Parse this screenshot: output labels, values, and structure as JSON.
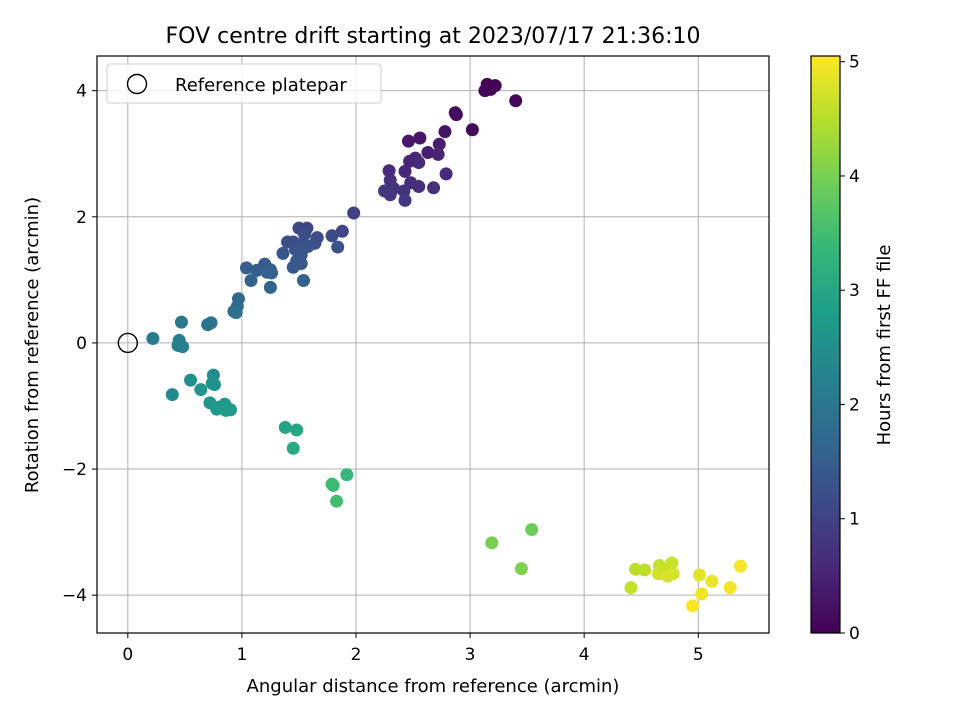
{
  "chart_data": {
    "type": "scatter",
    "title": "FOV centre drift starting at 2023/07/17 21:36:10",
    "xlabel": "Angular distance from reference (arcmin)",
    "ylabel": "Rotation from reference (arcmin)",
    "xlim": [
      -0.27,
      5.62
    ],
    "ylim": [
      -4.6,
      4.55
    ],
    "xticks": [
      0,
      1,
      2,
      3,
      4,
      5
    ],
    "yticks": [
      -4,
      -2,
      0,
      2,
      4
    ],
    "grid": true,
    "legend": {
      "placement": "top-left",
      "entries": [
        "Reference platepar"
      ]
    },
    "reference_point": {
      "x": 0,
      "y": 0
    },
    "colorbar": {
      "label": "Hours from first FF file",
      "range": [
        0,
        5.05
      ],
      "ticks": [
        0,
        1,
        2,
        3,
        4,
        5
      ],
      "colormap": [
        "#440154",
        "#482878",
        "#3e4989",
        "#31688e",
        "#26828e",
        "#1f9e89",
        "#35b779",
        "#6ece58",
        "#b5de2b",
        "#fde725"
      ]
    },
    "points": [
      {
        "x": 3.15,
        "y": 4.1,
        "c": 0.02
      },
      {
        "x": 3.22,
        "y": 4.08,
        "c": 0.03
      },
      {
        "x": 3.18,
        "y": 4.02,
        "c": 0.05
      },
      {
        "x": 3.13,
        "y": 4.0,
        "c": 0.06
      },
      {
        "x": 3.4,
        "y": 3.84,
        "c": 0.08
      },
      {
        "x": 2.87,
        "y": 3.65,
        "c": 0.15
      },
      {
        "x": 2.88,
        "y": 3.62,
        "c": 0.17
      },
      {
        "x": 3.02,
        "y": 3.38,
        "c": 0.12
      },
      {
        "x": 2.78,
        "y": 3.35,
        "c": 0.25
      },
      {
        "x": 2.56,
        "y": 3.25,
        "c": 0.3
      },
      {
        "x": 2.46,
        "y": 3.2,
        "c": 0.35
      },
      {
        "x": 2.73,
        "y": 3.15,
        "c": 0.4
      },
      {
        "x": 2.63,
        "y": 3.02,
        "c": 0.45
      },
      {
        "x": 2.72,
        "y": 2.99,
        "c": 0.5
      },
      {
        "x": 2.52,
        "y": 2.93,
        "c": 0.5
      },
      {
        "x": 2.47,
        "y": 2.88,
        "c": 0.55
      },
      {
        "x": 2.55,
        "y": 2.86,
        "c": 0.6
      },
      {
        "x": 2.29,
        "y": 2.73,
        "c": 0.65
      },
      {
        "x": 2.43,
        "y": 2.72,
        "c": 0.55
      },
      {
        "x": 2.79,
        "y": 2.68,
        "c": 0.6
      },
      {
        "x": 2.3,
        "y": 2.58,
        "c": 0.7
      },
      {
        "x": 2.48,
        "y": 2.54,
        "c": 0.65
      },
      {
        "x": 2.55,
        "y": 2.48,
        "c": 0.7
      },
      {
        "x": 2.68,
        "y": 2.46,
        "c": 0.7
      },
      {
        "x": 2.33,
        "y": 2.45,
        "c": 0.75
      },
      {
        "x": 2.42,
        "y": 2.41,
        "c": 0.75
      },
      {
        "x": 2.25,
        "y": 2.41,
        "c": 0.8
      },
      {
        "x": 2.3,
        "y": 2.35,
        "c": 0.8
      },
      {
        "x": 2.43,
        "y": 2.26,
        "c": 0.85
      },
      {
        "x": 1.98,
        "y": 2.06,
        "c": 1.0
      },
      {
        "x": 1.88,
        "y": 1.77,
        "c": 1.05
      },
      {
        "x": 1.57,
        "y": 1.82,
        "c": 1.1
      },
      {
        "x": 1.5,
        "y": 1.82,
        "c": 1.1
      },
      {
        "x": 1.79,
        "y": 1.7,
        "c": 1.15
      },
      {
        "x": 1.66,
        "y": 1.67,
        "c": 1.15
      },
      {
        "x": 1.55,
        "y": 1.72,
        "c": 1.2
      },
      {
        "x": 1.45,
        "y": 1.6,
        "c": 1.2
      },
      {
        "x": 1.4,
        "y": 1.6,
        "c": 1.2
      },
      {
        "x": 1.64,
        "y": 1.58,
        "c": 1.25
      },
      {
        "x": 1.53,
        "y": 1.57,
        "c": 1.25
      },
      {
        "x": 1.58,
        "y": 1.53,
        "c": 1.3
      },
      {
        "x": 1.84,
        "y": 1.52,
        "c": 1.3
      },
      {
        "x": 1.47,
        "y": 1.48,
        "c": 1.3
      },
      {
        "x": 1.36,
        "y": 1.42,
        "c": 1.35
      },
      {
        "x": 1.52,
        "y": 1.4,
        "c": 1.35
      },
      {
        "x": 1.48,
        "y": 1.3,
        "c": 1.4
      },
      {
        "x": 1.52,
        "y": 1.26,
        "c": 1.4
      },
      {
        "x": 1.45,
        "y": 1.2,
        "c": 1.4
      },
      {
        "x": 1.2,
        "y": 1.25,
        "c": 1.45
      },
      {
        "x": 1.25,
        "y": 1.16,
        "c": 1.45
      },
      {
        "x": 1.13,
        "y": 1.15,
        "c": 1.5
      },
      {
        "x": 1.04,
        "y": 1.19,
        "c": 1.5
      },
      {
        "x": 1.22,
        "y": 1.12,
        "c": 1.55
      },
      {
        "x": 1.26,
        "y": 1.11,
        "c": 1.55
      },
      {
        "x": 1.08,
        "y": 0.99,
        "c": 1.6
      },
      {
        "x": 1.54,
        "y": 0.99,
        "c": 1.6
      },
      {
        "x": 1.25,
        "y": 0.88,
        "c": 1.6
      },
      {
        "x": 0.97,
        "y": 0.7,
        "c": 1.7
      },
      {
        "x": 0.96,
        "y": 0.58,
        "c": 1.75
      },
      {
        "x": 0.93,
        "y": 0.5,
        "c": 1.8
      },
      {
        "x": 0.95,
        "y": 0.48,
        "c": 1.85
      },
      {
        "x": 0.47,
        "y": 0.33,
        "c": 2.0
      },
      {
        "x": 0.73,
        "y": 0.32,
        "c": 1.95
      },
      {
        "x": 0.7,
        "y": 0.29,
        "c": 1.95
      },
      {
        "x": 0.22,
        "y": 0.07,
        "c": 2.1
      },
      {
        "x": 0.45,
        "y": 0.04,
        "c": 2.15
      },
      {
        "x": 0.44,
        "y": -0.04,
        "c": 2.2
      },
      {
        "x": 0.48,
        "y": -0.06,
        "c": 2.2
      },
      {
        "x": 0.75,
        "y": -0.51,
        "c": 2.45
      },
      {
        "x": 0.55,
        "y": -0.59,
        "c": 2.5
      },
      {
        "x": 0.74,
        "y": -0.64,
        "c": 2.55
      },
      {
        "x": 0.76,
        "y": -0.66,
        "c": 2.55
      },
      {
        "x": 0.64,
        "y": -0.74,
        "c": 2.6
      },
      {
        "x": 0.39,
        "y": -0.82,
        "c": 2.4
      },
      {
        "x": 0.72,
        "y": -0.95,
        "c": 2.65
      },
      {
        "x": 0.85,
        "y": -0.97,
        "c": 2.65
      },
      {
        "x": 0.8,
        "y": -1.02,
        "c": 2.7
      },
      {
        "x": 0.78,
        "y": -1.05,
        "c": 2.7
      },
      {
        "x": 0.9,
        "y": -1.06,
        "c": 2.75
      },
      {
        "x": 0.86,
        "y": -1.07,
        "c": 2.75
      },
      {
        "x": 1.38,
        "y": -1.34,
        "c": 2.95
      },
      {
        "x": 1.48,
        "y": -1.38,
        "c": 3.0
      },
      {
        "x": 1.45,
        "y": -1.67,
        "c": 3.05
      },
      {
        "x": 1.92,
        "y": -2.09,
        "c": 3.35
      },
      {
        "x": 1.79,
        "y": -2.24,
        "c": 3.45
      },
      {
        "x": 1.8,
        "y": -2.26,
        "c": 3.45
      },
      {
        "x": 1.83,
        "y": -2.51,
        "c": 3.5
      },
      {
        "x": 3.54,
        "y": -2.96,
        "c": 3.9
      },
      {
        "x": 3.19,
        "y": -3.17,
        "c": 4.0
      },
      {
        "x": 3.45,
        "y": -3.58,
        "c": 4.05
      },
      {
        "x": 4.77,
        "y": -3.49,
        "c": 4.65
      },
      {
        "x": 4.66,
        "y": -3.53,
        "c": 4.6
      },
      {
        "x": 4.45,
        "y": -3.59,
        "c": 4.55
      },
      {
        "x": 4.53,
        "y": -3.6,
        "c": 4.55
      },
      {
        "x": 4.72,
        "y": -3.6,
        "c": 4.65
      },
      {
        "x": 4.69,
        "y": -3.62,
        "c": 4.65
      },
      {
        "x": 4.65,
        "y": -3.66,
        "c": 4.7
      },
      {
        "x": 4.78,
        "y": -3.66,
        "c": 4.75
      },
      {
        "x": 4.73,
        "y": -3.7,
        "c": 4.75
      },
      {
        "x": 5.01,
        "y": -3.68,
        "c": 4.85
      },
      {
        "x": 5.37,
        "y": -3.54,
        "c": 5.0
      },
      {
        "x": 5.12,
        "y": -3.78,
        "c": 4.9
      },
      {
        "x": 4.41,
        "y": -3.88,
        "c": 4.6
      },
      {
        "x": 5.28,
        "y": -3.88,
        "c": 4.95
      },
      {
        "x": 5.03,
        "y": -3.98,
        "c": 4.95
      },
      {
        "x": 4.95,
        "y": -4.17,
        "c": 5.0
      }
    ]
  }
}
